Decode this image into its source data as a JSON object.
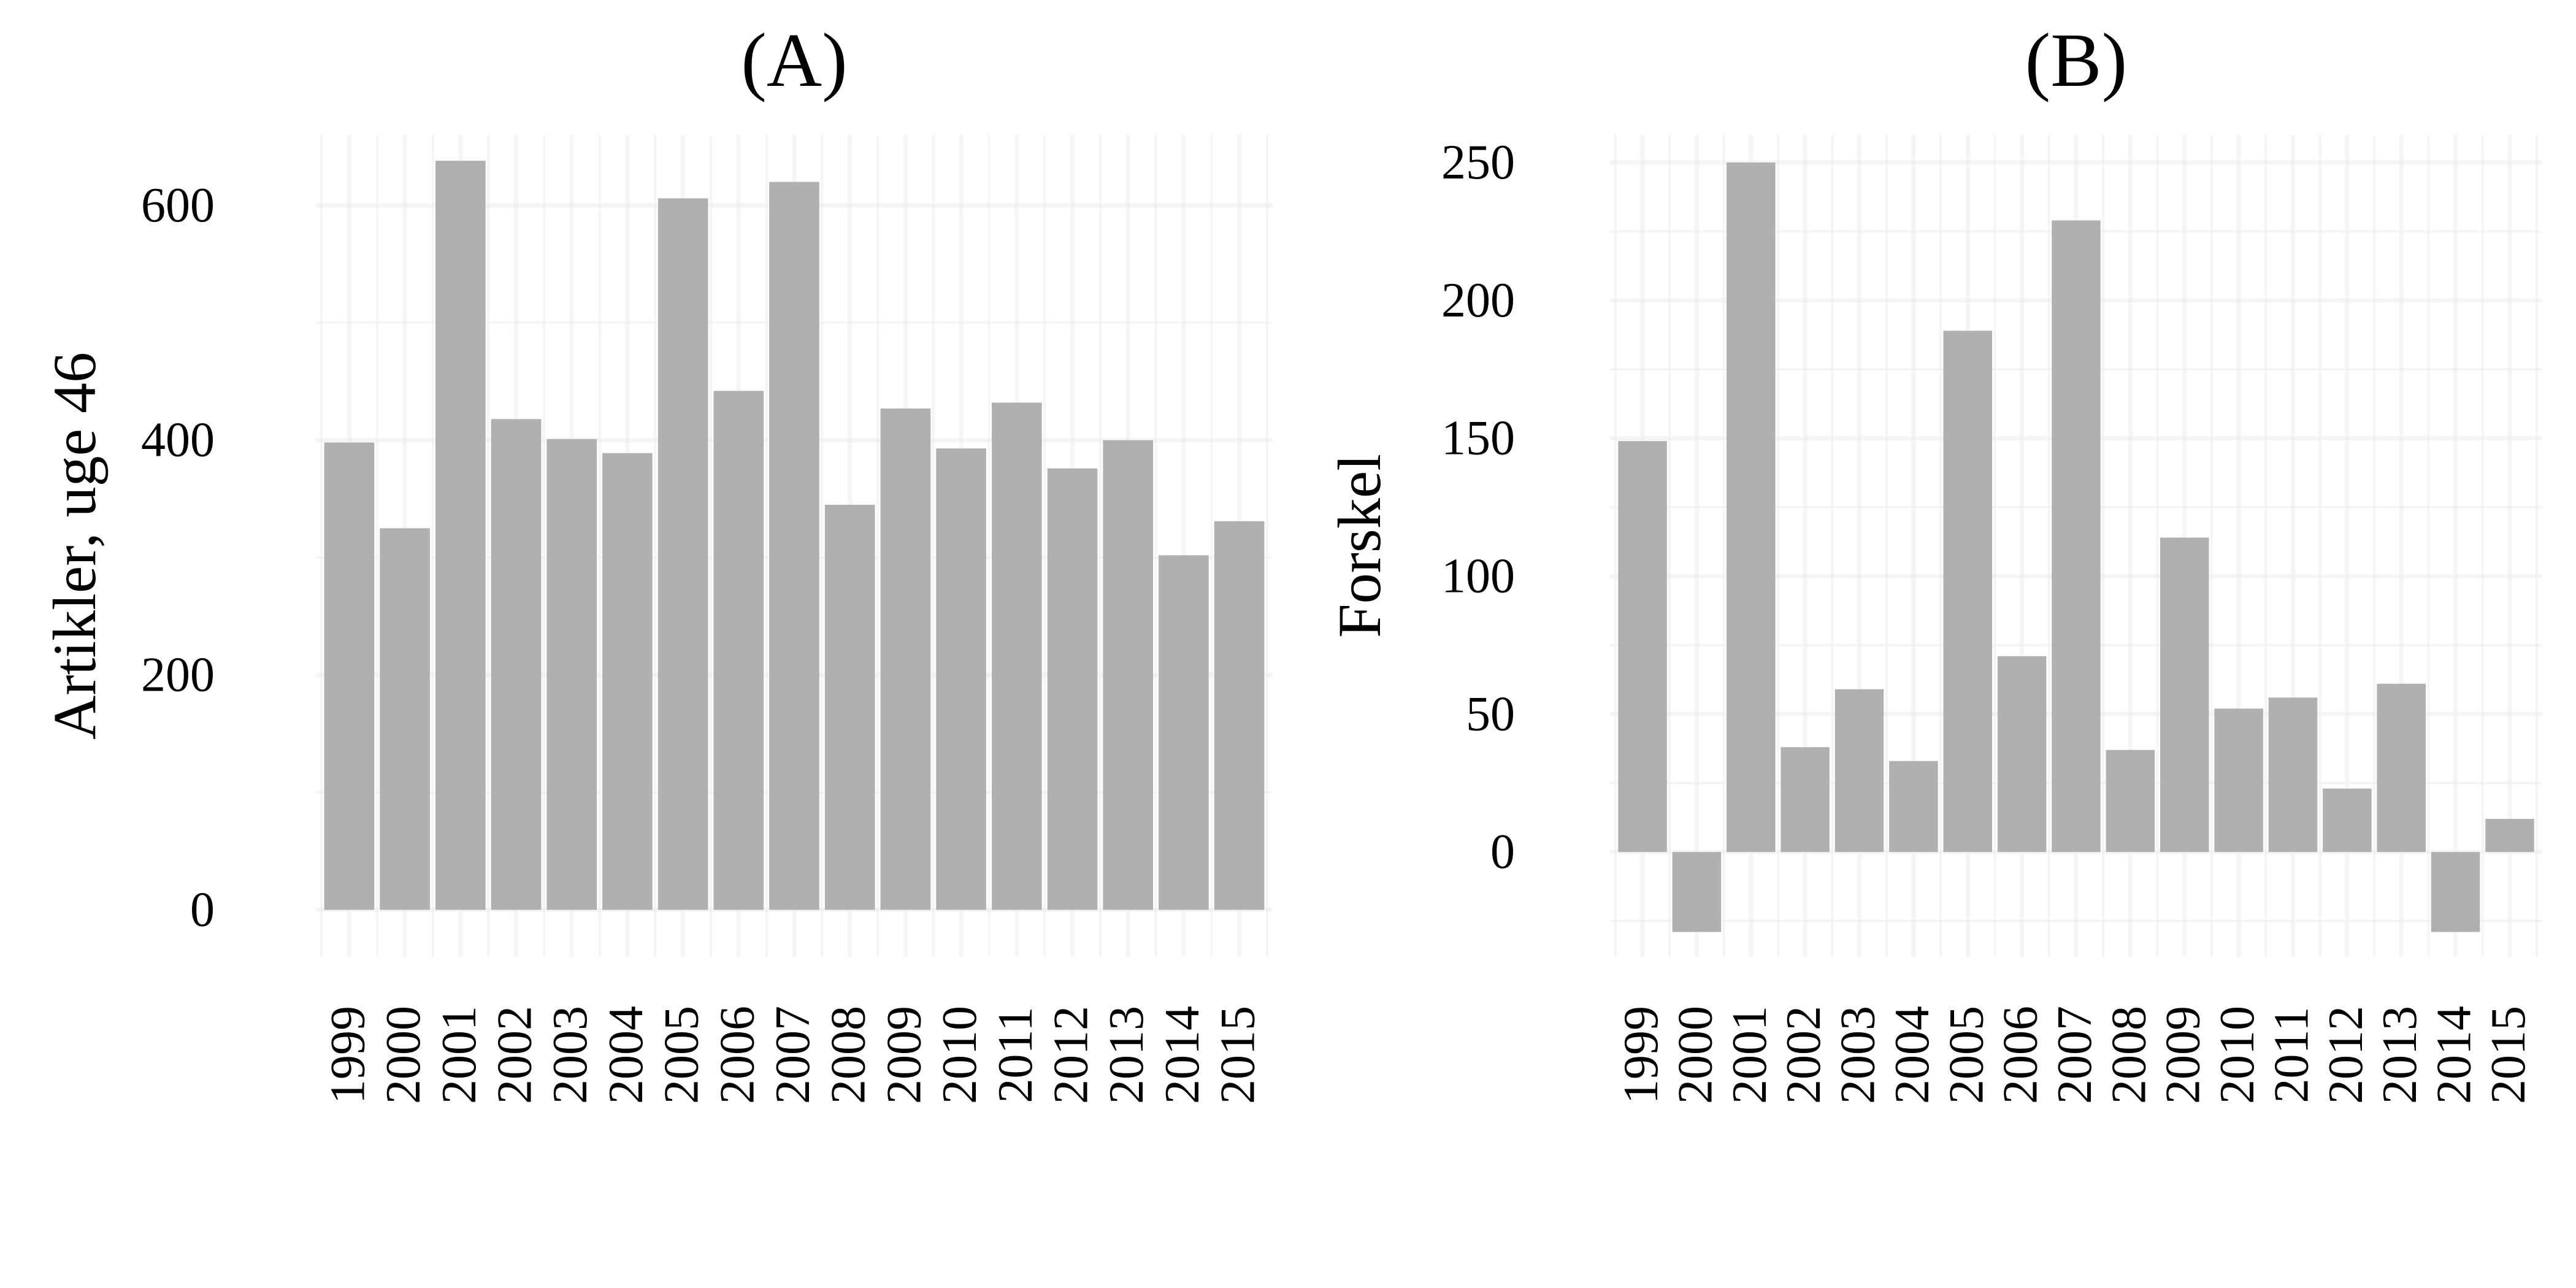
{
  "chart_data": [
    {
      "type": "bar",
      "title": "(A)",
      "xlabel": "",
      "ylabel": "Artikler, uge 46",
      "categories": [
        "1999",
        "2000",
        "2001",
        "2002",
        "2003",
        "2004",
        "2005",
        "2006",
        "2007",
        "2008",
        "2009",
        "2010",
        "2011",
        "2012",
        "2013",
        "2014",
        "2015"
      ],
      "values": [
        398,
        325,
        638,
        418,
        401,
        389,
        606,
        442,
        620,
        345,
        427,
        393,
        432,
        376,
        400,
        302,
        331
      ],
      "ylim": [
        -40,
        660
      ],
      "yticks": [
        0,
        200,
        400,
        600
      ],
      "bar_color": "#b0b0b0",
      "grid": true
    },
    {
      "type": "bar",
      "title": "(B)",
      "xlabel": "",
      "ylabel": "Forskel",
      "categories": [
        "1999",
        "2000",
        "2001",
        "2002",
        "2003",
        "2004",
        "2005",
        "2006",
        "2007",
        "2008",
        "2009",
        "2010",
        "2011",
        "2012",
        "2013",
        "2014",
        "2015"
      ],
      "values": [
        149,
        -29,
        250,
        38,
        59,
        33,
        189,
        71,
        229,
        37,
        114,
        52,
        56,
        23,
        61,
        -29,
        12
      ],
      "ylim": [
        -38,
        260
      ],
      "yticks": [
        0,
        50,
        100,
        150,
        200,
        250
      ],
      "bar_color": "#b0b0b0",
      "grid": true
    }
  ]
}
